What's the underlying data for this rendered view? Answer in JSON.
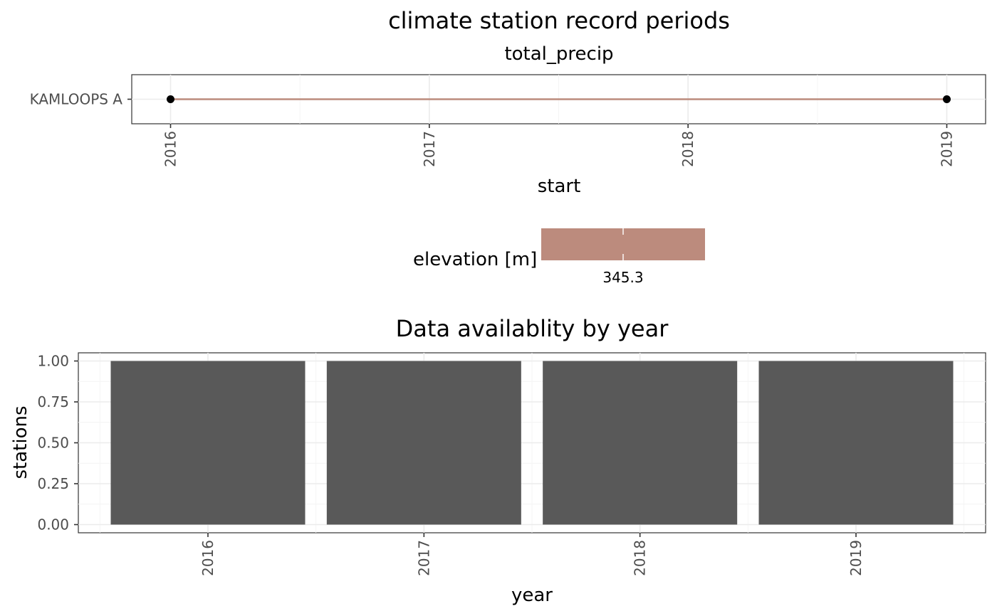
{
  "chart_data": [
    {
      "type": "line",
      "title": "climate station record periods",
      "subtitle": "total_precip",
      "xlabel": "start",
      "ylabel": "",
      "x_ticks": [
        "2016",
        "2017",
        "2018",
        "2019"
      ],
      "xlim": [
        2015.85,
        2019.15
      ],
      "stations": [
        {
          "name": "KAMLOOPS A",
          "start": 2016.0,
          "end": 2019.0,
          "elevation": 345.3
        }
      ],
      "legend": {
        "title": "elevation [m]",
        "value_label": "345.3",
        "color": "#bc8b7d"
      },
      "point_color": "#000000",
      "grid": true
    },
    {
      "type": "bar",
      "title": "Data availablity by year",
      "xlabel": "year",
      "ylabel": "stations",
      "categories": [
        "2016",
        "2017",
        "2018",
        "2019"
      ],
      "values": [
        1.0,
        1.0,
        1.0,
        1.0
      ],
      "y_ticks": [
        "0.00",
        "0.25",
        "0.50",
        "0.75",
        "1.00"
      ],
      "ylim": [
        0.0,
        1.0
      ],
      "bar_color": "#595959",
      "grid": true
    }
  ]
}
